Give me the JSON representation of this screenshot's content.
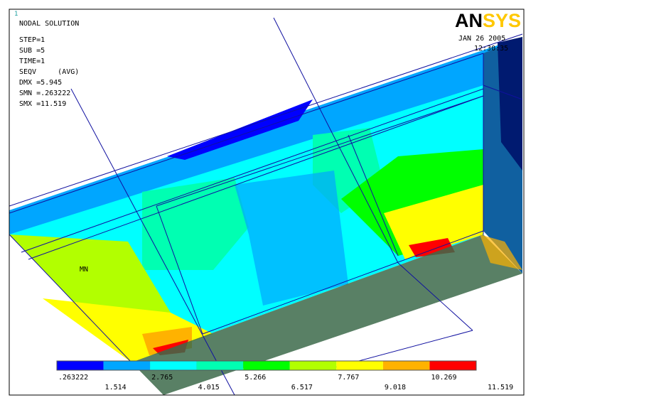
{
  "window": {
    "number": "1"
  },
  "info": [
    "NODAL SOLUTION",
    "STEP=1",
    "SUB =5",
    "TIME=1",
    "SEQV     (AVG)",
    "DMX =5.945",
    "SMN =.263222",
    "SMX =11.519"
  ],
  "logo": {
    "part1": "AN",
    "part2": "SYS"
  },
  "date": "JAN 26 2005",
  "time": "12:30:35",
  "marker": "MN",
  "legend": {
    "colors": [
      "#0000ff",
      "#00a6ff",
      "#00ffff",
      "#00ffb2",
      "#00ff00",
      "#b2ff00",
      "#ffff00",
      "#ffb200",
      "#ff0000"
    ],
    "labels": [
      ".263222",
      "1.514",
      "2.765",
      "4.015",
      "5.266",
      "6.517",
      "7.767",
      "9.018",
      "10.269",
      "11.519"
    ]
  }
}
